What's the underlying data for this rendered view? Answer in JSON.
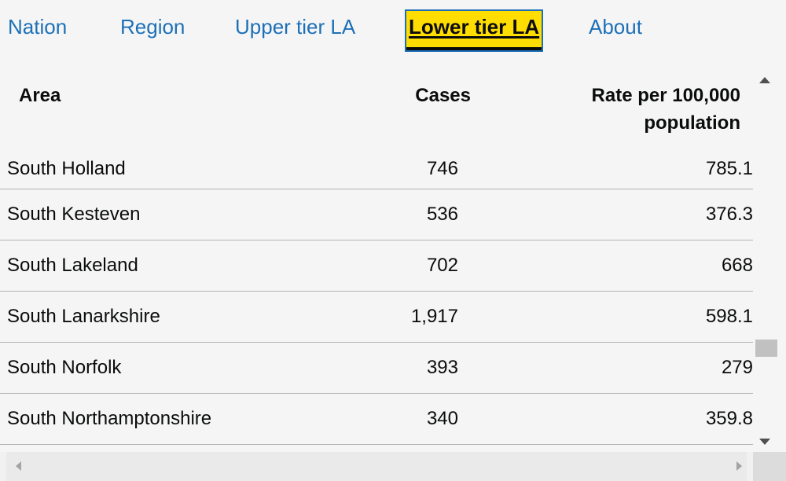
{
  "tabs": [
    {
      "label": "Nation",
      "active": false
    },
    {
      "label": "Region",
      "active": false
    },
    {
      "label": "Upper tier LA",
      "active": false
    },
    {
      "label": "Lower tier LA",
      "active": true
    },
    {
      "label": "About",
      "active": false
    }
  ],
  "table": {
    "headers": {
      "area": "Area",
      "cases": "Cases",
      "rate": "Rate per 100,000 population"
    },
    "rows": [
      {
        "area": "South Holland",
        "cases": "746",
        "rate": "785.1"
      },
      {
        "area": "South Kesteven",
        "cases": "536",
        "rate": "376.3"
      },
      {
        "area": "South Lakeland",
        "cases": "702",
        "rate": "668"
      },
      {
        "area": "South Lanarkshire",
        "cases": "1,917",
        "rate": "598.1"
      },
      {
        "area": "South Norfolk",
        "cases": "393",
        "rate": "279"
      },
      {
        "area": "South Northamptonshire",
        "cases": "340",
        "rate": "359.8"
      }
    ]
  },
  "colors": {
    "link": "#1d70b8",
    "active_tab_bg": "#ffdd00",
    "text": "#0b0c0c",
    "divider": "#b1b4b6"
  },
  "icons": {
    "scroll_up": "triangle-up-icon",
    "scroll_down": "triangle-down-icon",
    "scroll_left": "triangle-left-icon",
    "scroll_right": "triangle-right-icon"
  }
}
